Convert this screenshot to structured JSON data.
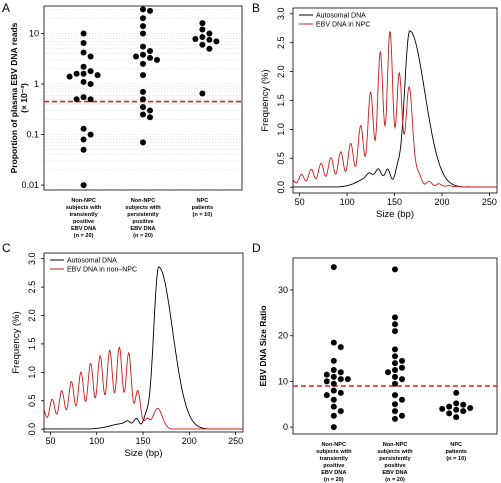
{
  "figure": {
    "panels": [
      {
        "letter": "A"
      },
      {
        "letter": "B"
      },
      {
        "letter": "C"
      },
      {
        "letter": "D"
      }
    ]
  },
  "chart_data": [
    {
      "id": "A",
      "type": "scatter",
      "ylabel": "Proportion of plasma  EBV DNA reads",
      "ylabel2": "(× 10⁻³)",
      "yscale": "log",
      "ylim": [
        0.008,
        35
      ],
      "yticks": [
        "0.01",
        "0.1",
        "1",
        "10"
      ],
      "yticks_values": [
        0.01,
        0.1,
        1,
        10
      ],
      "grid": true,
      "categories": [
        [
          "Non-NPC",
          "subjects with",
          "transiently",
          "positive",
          "EBV DNA",
          "(n = 20)"
        ],
        [
          "Non-NPC",
          "subjects with",
          "persistently",
          "positive",
          "EBV DNA",
          "(n = 20)"
        ],
        [
          "NPC",
          "patients",
          "(n = 10)"
        ]
      ],
      "threshold": 0.45,
      "threshold_color": "#d62020",
      "point_color": "#000000",
      "groups": [
        [
          10,
          6.5,
          4.2,
          3.5,
          2.2,
          1.8,
          1.6,
          1.6,
          1.5,
          1.4,
          1.1,
          1.0,
          0.55,
          0.5,
          0.5,
          0.13,
          0.1,
          0.08,
          0.05,
          0.01
        ],
        [
          30,
          28,
          20,
          14,
          10,
          5.5,
          4.5,
          3.8,
          3.5,
          3.3,
          3.0,
          2.5,
          1.5,
          0.7,
          0.5,
          0.35,
          0.3,
          0.25,
          0.22,
          0.07
        ],
        [
          16,
          12,
          10,
          8.5,
          7.8,
          7.5,
          7.0,
          6.0,
          5.0,
          0.65
        ]
      ]
    },
    {
      "id": "B",
      "type": "line",
      "xlabel": "Size (bp)",
      "ylabel": "Frequency (%)",
      "xlim": [
        43,
        258
      ],
      "ylim": [
        -0.1,
        3.1
      ],
      "xticks": [
        50,
        100,
        150,
        200,
        250
      ],
      "yticks": [
        0.0,
        0.5,
        1.0,
        1.5,
        2.0,
        2.5,
        3.0
      ],
      "legend_position": "top-left",
      "series": [
        {
          "name": "Autosomal DNA",
          "color": "#000000",
          "shape": {
            "peak": [
              166,
              2.7,
              5.5,
              16
            ],
            "bumps": [
              [
                143,
                0.2,
                2.5
              ],
              [
                153,
                0.2,
                2.5
              ],
              [
                133,
                0.13,
                2.5
              ],
              [
                123,
                0.06,
                2.5
              ]
            ],
            "shoulder": [
              128,
              0.2,
              14
            ]
          }
        },
        {
          "name": "EBV DNA in NPC",
          "color": "#d01818",
          "shape": {
            "base": [
              147,
              1.6,
              18,
              10
            ],
            "tail": [
              110,
              0.45,
              40
            ],
            "spike": [
              166,
              1.1,
              4
            ],
            "osc": [
              10.4,
              0.42
            ]
          }
        }
      ]
    },
    {
      "id": "C",
      "type": "line",
      "xlabel": "Size (bp)",
      "ylabel": "Frequency (%)",
      "xlim": [
        43,
        258
      ],
      "ylim": [
        -0.05,
        3.1
      ],
      "xticks": [
        50,
        100,
        150,
        200,
        250
      ],
      "yticks": [
        0.0,
        0.5,
        1.0,
        1.5,
        2.0,
        2.5,
        3.0
      ],
      "legend_position": "top-left",
      "series": [
        {
          "name": "Autosomal DNA",
          "color": "#000000",
          "shape": {
            "peak": [
              167,
              2.85,
              5.5,
              15
            ],
            "bumps": [
              [
                143,
                0.12,
                2.5
              ],
              [
                153,
                0.15,
                2.5
              ],
              [
                133,
                0.05,
                2.5
              ]
            ],
            "shoulder": [
              130,
              0.1,
              15
            ]
          }
        },
        {
          "name": "EBV DNA in non–NPC",
          "color": "#d01818",
          "shape": {
            "base": [
              130,
              1.05,
              55,
              12
            ],
            "tail": [
              160,
              0.0,
              10
            ],
            "spike": [
              166,
              0.35,
              5
            ],
            "osc": [
              10.4,
              0.38
            ]
          }
        }
      ]
    },
    {
      "id": "D",
      "type": "scatter",
      "ylabel": "EBV DNA Size Ratio",
      "ylim": [
        -1.5,
        37
      ],
      "yticks": [
        0,
        10,
        20,
        30
      ],
      "categories": [
        [
          "Non-NPC",
          "subjects with",
          "transiently",
          "positive",
          "EBV DNA",
          "(n = 20)"
        ],
        [
          "Non-NPC",
          "subjects with",
          "persistently",
          "positive",
          "EBV DNA",
          "(n = 20)"
        ],
        [
          "NPC",
          "patients",
          "(n = 10)"
        ]
      ],
      "threshold": 9.0,
      "threshold_color": "#d62020",
      "point_color": "#000000",
      "groups": [
        [
          35,
          18.5,
          17.5,
          14.5,
          12.5,
          12,
          11.5,
          11,
          10.5,
          10.5,
          10,
          9.5,
          8,
          7.5,
          7,
          6,
          4.5,
          3.5,
          2.5,
          0
        ],
        [
          34.5,
          24,
          22.5,
          21,
          17,
          15.5,
          14.5,
          14,
          13,
          12.5,
          12,
          11,
          10.5,
          9.5,
          7,
          6,
          5,
          3.5,
          2.5,
          1.8
        ],
        [
          7.5,
          5.2,
          4.9,
          4.5,
          4.2,
          4,
          3.8,
          3.5,
          3,
          2.2
        ]
      ]
    }
  ]
}
